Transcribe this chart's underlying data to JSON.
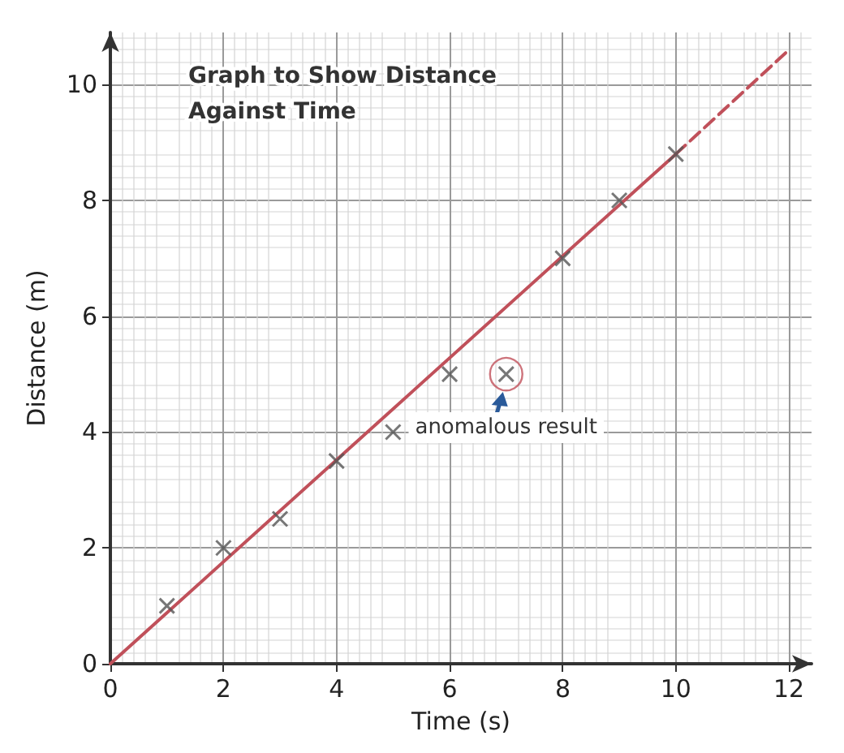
{
  "chart_data": {
    "type": "scatter",
    "title": "Graph to Show Distance Against Time",
    "xlabel": "Time (s)",
    "ylabel": "Distance (m)",
    "xlim": [
      0,
      12.4
    ],
    "xticks": [
      0,
      2,
      4,
      6,
      8,
      10,
      12
    ],
    "ylim": [
      0,
      10.9
    ],
    "yticks": [
      0,
      2,
      4,
      6,
      8,
      10
    ],
    "grid": true,
    "marker": "cross",
    "series": [
      {
        "color": "#555555",
        "x": [
          1,
          2,
          3,
          4,
          5,
          6,
          7,
          8,
          9,
          10
        ],
        "values": [
          1,
          2,
          2.5,
          3.5,
          4,
          5,
          5,
          7,
          8,
          8.8
        ]
      },
      {
        "type": "line",
        "color": "#c0505a",
        "marker": "none",
        "line_style": "solid",
        "x": [
          0,
          10
        ],
        "values": [
          0,
          8.8
        ]
      },
      {
        "type": "line",
        "color": "#c0505a",
        "marker": "none",
        "line_style": "dashed",
        "x": [
          10,
          12
        ],
        "values": [
          8.8,
          10.6
        ]
      }
    ],
    "annotations": [
      {
        "text": "anomalous result",
        "x": 7,
        "y": 5
      }
    ]
  }
}
